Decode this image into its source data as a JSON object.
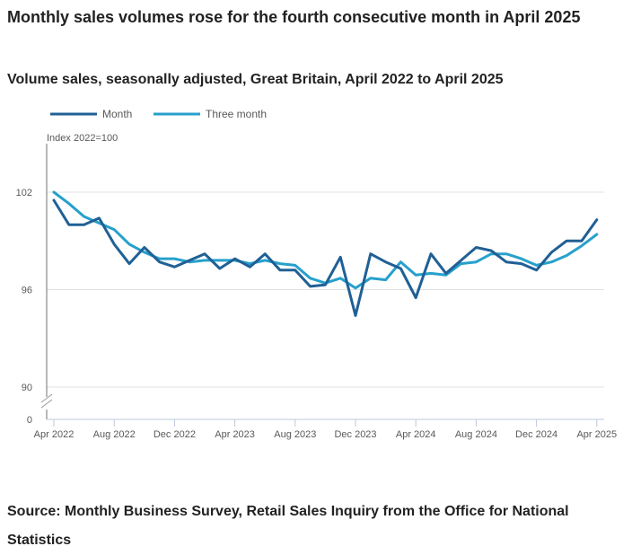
{
  "title": "Monthly sales volumes rose for the fourth consecutive month in April 2025",
  "subtitle": "Volume sales, seasonally adjusted, Great Britain, April 2022 to April 2025",
  "source": "Source: Monthly Business Survey, Retail Sales Inquiry from the Office for National Statistics",
  "chart_data": {
    "type": "line",
    "title": "Volume sales, seasonally adjusted, Great Britain, April 2022 to April 2025",
    "xlabel": "",
    "ylabel": "Index 2022=100",
    "ylim": [
      90,
      104
    ],
    "y_axis_break": true,
    "y_ticks": [
      0,
      90,
      96,
      102
    ],
    "grid": true,
    "legend_position": "top-left",
    "x_tick_labels": [
      "Apr 2022",
      "Aug 2022",
      "Dec 2022",
      "Apr 2023",
      "Aug 2023",
      "Dec 2023",
      "Apr 2024",
      "Aug 2024",
      "Dec 2024",
      "Apr 2025"
    ],
    "x": [
      "Apr 2022",
      "May 2022",
      "Jun 2022",
      "Jul 2022",
      "Aug 2022",
      "Sep 2022",
      "Oct 2022",
      "Nov 2022",
      "Dec 2022",
      "Jan 2023",
      "Feb 2023",
      "Mar 2023",
      "Apr 2023",
      "May 2023",
      "Jun 2023",
      "Jul 2023",
      "Aug 2023",
      "Sep 2023",
      "Oct 2023",
      "Nov 2023",
      "Dec 2023",
      "Jan 2024",
      "Feb 2024",
      "Mar 2024",
      "Apr 2024",
      "May 2024",
      "Jun 2024",
      "Jul 2024",
      "Aug 2024",
      "Sep 2024",
      "Oct 2024",
      "Nov 2024",
      "Dec 2024",
      "Jan 2025",
      "Feb 2025",
      "Mar 2025",
      "Apr 2025"
    ],
    "series": [
      {
        "name": "Month",
        "color": "#206095",
        "values": [
          101.5,
          100.0,
          100.0,
          100.4,
          98.8,
          97.6,
          98.6,
          97.7,
          97.4,
          97.8,
          98.2,
          97.3,
          97.9,
          97.4,
          98.2,
          97.2,
          97.2,
          96.2,
          96.3,
          98.0,
          94.4,
          98.2,
          97.7,
          97.3,
          95.5,
          98.2,
          97.0,
          97.8,
          98.6,
          98.4,
          97.7,
          97.6,
          97.2,
          98.3,
          99.0,
          99.0,
          100.3
        ]
      },
      {
        "name": "Three month",
        "color": "#27a0cc",
        "values": [
          102.0,
          101.3,
          100.5,
          100.1,
          99.7,
          98.8,
          98.3,
          97.9,
          97.9,
          97.7,
          97.8,
          97.8,
          97.8,
          97.6,
          97.8,
          97.6,
          97.5,
          96.7,
          96.4,
          96.7,
          96.1,
          96.7,
          96.6,
          97.7,
          96.9,
          97.0,
          96.9,
          97.6,
          97.7,
          98.2,
          98.2,
          97.9,
          97.5,
          97.7,
          98.1,
          98.7,
          99.4
        ]
      }
    ]
  }
}
